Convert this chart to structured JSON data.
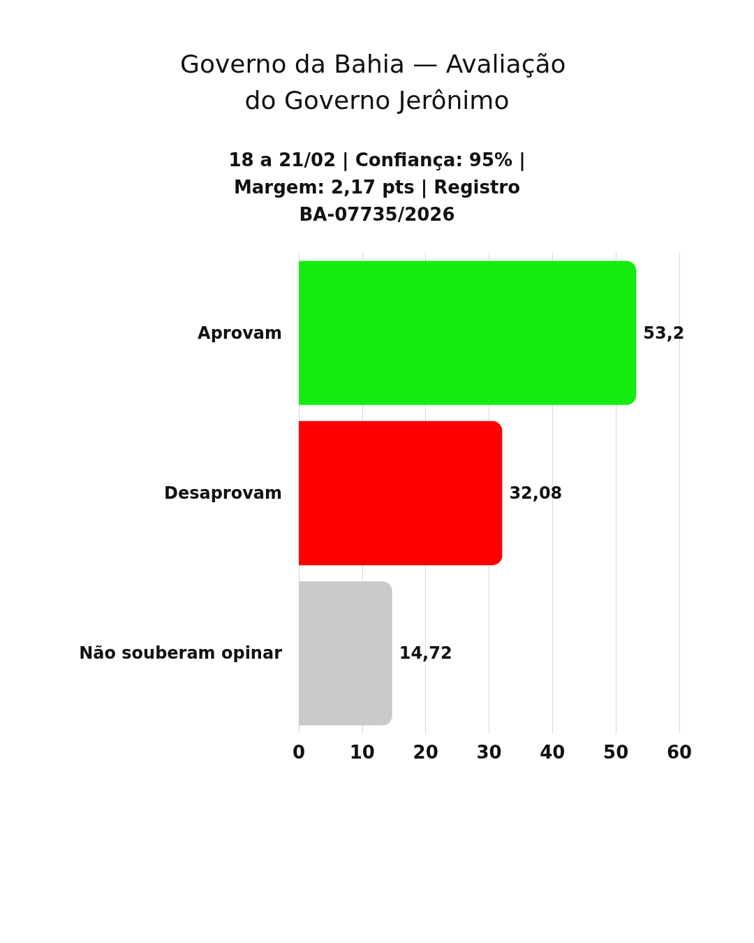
{
  "chart_data": {
    "type": "bar",
    "orientation": "horizontal",
    "title": "Governo da Bahia — Avaliação do Governo Jerônimo",
    "subtitle": "18 a 21/02 | Confiança: 95% | Margem: 2,17 pts | Registro BA-07735/2026",
    "categories": [
      "Aprovam",
      "Desaprovam",
      "Não souberam opinar"
    ],
    "values": [
      53.2,
      32.08,
      14.72
    ],
    "colors": [
      "#14eb0f",
      "#ff0000",
      "#c8cbca"
    ],
    "value_labels": [
      "53,2",
      "32,08",
      "14,72"
    ],
    "xlim": [
      0,
      60
    ],
    "xticks": [
      0,
      10,
      20,
      30,
      40,
      50,
      60
    ],
    "grid": "x"
  }
}
